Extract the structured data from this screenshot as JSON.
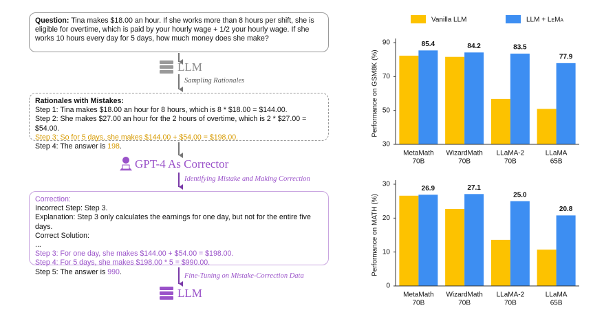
{
  "diagram": {
    "question": {
      "label": "Question:",
      "text": "Tina makes $18.00 an hour. If she works more than 8 hours per shift, she is eligible for overtime, which is paid by your hourly wage + 1/2 your hourly wage. If she works 10 hours every day for 5 days, how much money does she make?"
    },
    "llm_1": "LLM",
    "step_1": "Sampling Rationales",
    "rationales": {
      "title": "Rationales with Mistakes:",
      "steps": [
        "Step 1: Tina makes $18.00 an hour for 8 hours, which is 8 * $18.00 = $144.00.",
        "Step 2: She makes $27.00 an hour for the 2 hours of overtime, which is 2 * $27.00 = $54.00.",
        "Step 3: So for 5 days, she makes $144.00 + $54.00 = $198.00."
      ],
      "answer_prefix": "Step 4: The answer is",
      "answer": "198",
      "answer_suffix": "."
    },
    "corrector": "GPT-4 As Corrector",
    "step_2": "Identifying Mistake and Making Correction",
    "correction": {
      "title": "Correction:",
      "lines": [
        "Incorrect Step: Step 3.",
        "Explanation: Step 3 only calculates the earnings for one day, but not for the entire five days.",
        "Correct Solution:",
        "..."
      ],
      "steps": [
        "Step 3: For one day, she makes $144.00 + $54.00 = $198.00.",
        "Step 4: For 5 days, she makes $198.00 * 5 = $990.00."
      ],
      "answer_prefix": "Step 5: The answer is",
      "answer": "990",
      "answer_suffix": "."
    },
    "step_3": "Fine-Tuning on Mistake-Correction Data",
    "llm_2": "LLM"
  },
  "chart_data": [
    {
      "type": "bar",
      "y_label": "Performance on GSM8K (%)",
      "categories": [
        [
          "MetaMath",
          "70B"
        ],
        [
          "WizardMath",
          "70B"
        ],
        [
          "LLaMA-2",
          "70B"
        ],
        [
          "LLaMA",
          "65B"
        ]
      ],
      "series": [
        {
          "name": "Vanilla LLM",
          "color": "#fdc200",
          "values": [
            82.3,
            81.6,
            56.8,
            50.9
          ]
        },
        {
          "name": "LLM + LeMa",
          "color": "#3d8ef2",
          "values": [
            85.4,
            84.2,
            83.5,
            77.9
          ],
          "value_labels": [
            "85.4",
            "84.2",
            "83.5",
            "77.9"
          ]
        }
      ],
      "ylim": [
        30,
        90
      ],
      "yticks": [
        30,
        50,
        70,
        90
      ],
      "legend": "top"
    },
    {
      "type": "bar",
      "y_label": "Performance on MATH (%)",
      "categories": [
        [
          "MetaMath",
          "70B"
        ],
        [
          "WizardMath",
          "70B"
        ],
        [
          "LLaMA-2",
          "70B"
        ],
        [
          "LLaMA",
          "65B"
        ]
      ],
      "series": [
        {
          "color": "#fdc200",
          "values": [
            26.6,
            22.7,
            13.6,
            10.7
          ]
        },
        {
          "color": "#3d8ef2",
          "values": [
            26.9,
            27.1,
            25.0,
            20.8
          ],
          "value_labels": [
            "26.9",
            "27.1",
            "25.0",
            "20.8"
          ]
        }
      ],
      "ylim": [
        0,
        30
      ],
      "yticks": [
        0,
        10,
        20,
        30
      ]
    }
  ]
}
